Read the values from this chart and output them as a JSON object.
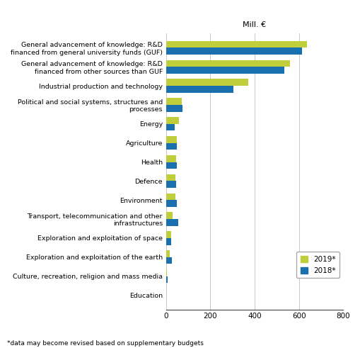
{
  "categories": [
    "Education",
    "Culture, recreation, religion and mass media",
    "Exploration and exploitation of the earth",
    "Exploration and exploitation of space",
    "Transport, telecommunication and other\ninfrastructures",
    "Environment",
    "Defence",
    "Health",
    "Agriculture",
    "Energy",
    "Political and social systems, structures and\nprocesses",
    "Industrial production and technology",
    "General advancement of knowledge: R&D\nfinanced from other sources than GUF",
    "General advancement of knowledge: R&D\nfinanced from general university funds (GUF)"
  ],
  "values_2019": [
    2,
    5,
    18,
    22,
    30,
    42,
    43,
    46,
    48,
    57,
    72,
    370,
    560,
    635
  ],
  "values_2018": [
    2,
    8,
    25,
    22,
    55,
    47,
    45,
    47,
    48,
    38,
    73,
    305,
    535,
    615
  ],
  "color_2019": "#bfce3a",
  "color_2018": "#1a6fae",
  "unit_label": "Mill. €",
  "xlim": [
    0,
    800
  ],
  "xticks": [
    0,
    200,
    400,
    600,
    800
  ],
  "legend_2019": "2019*",
  "legend_2018": "2018*",
  "footnote": "*data may become revised based on supplementary budgets",
  "background_color": "#ffffff",
  "grid_color": "#c8c8c8"
}
